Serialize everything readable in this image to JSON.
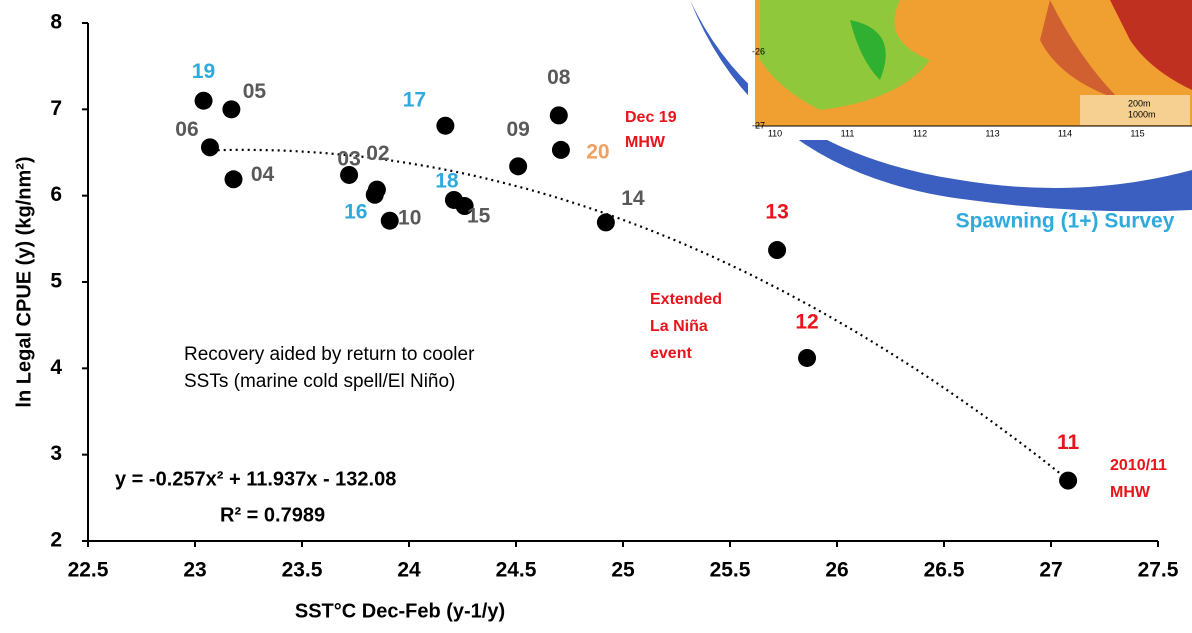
{
  "chart_data": {
    "type": "scatter",
    "x_label": "SST°C Dec-Feb (y-1/y)",
    "y_label": "ln Legal CPUE (y) (kg/nm²)",
    "xlim": [
      22.5,
      27.5
    ],
    "xticks": [
      22.5,
      23,
      23.5,
      24,
      24.5,
      25,
      25.5,
      26,
      26.5,
      27,
      27.5
    ],
    "ylim": [
      2,
      8
    ],
    "yticks": [
      2,
      3,
      4,
      5,
      6,
      7,
      8
    ],
    "color": "#000000",
    "x": [
      23.04,
      23.17,
      23.07,
      23.18,
      23.72,
      23.85,
      23.84,
      23.91,
      24.17,
      24.21,
      24.26,
      24.51,
      24.7,
      24.71,
      24.92,
      25.72,
      25.86,
      27.08
    ],
    "values": [
      7.1,
      7.0,
      6.56,
      6.19,
      6.24,
      6.07,
      6.01,
      5.71,
      6.81,
      5.95,
      5.88,
      6.34,
      6.93,
      6.53,
      5.69,
      5.37,
      4.12,
      2.7
    ],
    "labels": [
      "19",
      "05",
      "06",
      "04",
      "03",
      "02",
      "16",
      "10",
      "17",
      "18",
      "15",
      "09",
      "08",
      "20",
      "14",
      "13",
      "12",
      "11"
    ],
    "label_colors": [
      "#2eaadc",
      "#595959",
      "#595959",
      "#595959",
      "#595959",
      "#595959",
      "#2eaadc",
      "#595959",
      "#2eaadc",
      "#2eaadc",
      "#595959",
      "#595959",
      "#595959",
      "#f0a060",
      "#595959",
      "#e8141c",
      "#e8141c",
      "#e8141c"
    ],
    "trendline": {
      "coefficients": [
        -0.257,
        11.937,
        -132.08
      ],
      "x_range": [
        23.05,
        27.08
      ]
    },
    "equation": "y = -0.257x² + 11.937x - 132.08",
    "r_squared": "R² = 0.7989",
    "annotations": [
      {
        "lines": [
          "Dec 19",
          "MHW"
        ],
        "color": "#e8141c"
      },
      {
        "lines": [
          "Extended",
          "La Niña",
          "event"
        ],
        "color": "#e8141c"
      },
      {
        "lines": [
          "2010/11",
          "MHW"
        ],
        "color": "#e8141c"
      },
      {
        "lines": [
          "Recovery aided by return to cooler",
          "SSTs (marine cold spell/El Niño)"
        ],
        "color": "#000000"
      },
      {
        "lines": [
          "Spawning (1+) Survey"
        ],
        "color": "#2eaadc"
      }
    ],
    "inset": {
      "x_ticks": [
        "110",
        "111",
        "112",
        "113",
        "114",
        "115"
      ],
      "y_ticks": [
        "-26",
        "-27"
      ],
      "legend": [
        "200m",
        "1000m"
      ]
    }
  }
}
